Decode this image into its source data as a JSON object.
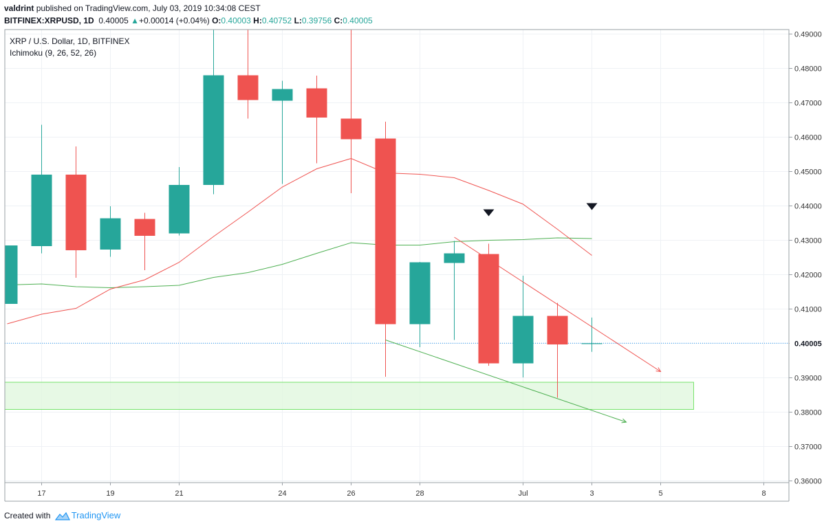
{
  "header": {
    "author": "valdrint",
    "published": "published on TradingView.com, July 03, 2019 10:34:08 CEST",
    "symbol": "BITFINEX:XRPUSD, 1D",
    "last_price": "0.40005",
    "change_arrow": "▲",
    "change": "+0.00014 (+0.04%)",
    "o_label": "O:",
    "o_value": "0.40003",
    "h_label": "H:",
    "h_value": "0.40752",
    "l_label": "L:",
    "l_value": "0.39756",
    "c_label": "C:",
    "c_value": "0.40005"
  },
  "legend": {
    "pair": "XRP / U.S. Dollar, 1D, BITFINEX",
    "indicator": "Ichimoku (9, 26, 52, 26)"
  },
  "footer": {
    "created_with": "Created with",
    "brand": "TradingView"
  },
  "colors": {
    "up": "#26a69a",
    "down": "#ef5350",
    "conversion_line": "#ef5350",
    "base_line": "#4caf50",
    "zone_fill": "#dff7dc",
    "zone_border": "#76e36a",
    "price_line": "#2196f3"
  },
  "chart_data": {
    "type": "candlestick",
    "ylim": [
      0.3595,
      0.4913
    ],
    "xlim": [
      "2019-06-16",
      "2019-07-09"
    ],
    "yticks": [
      "0.36000",
      "0.37000",
      "0.38000",
      "0.39000",
      "0.40000",
      "0.41000",
      "0.42000",
      "0.43000",
      "0.44000",
      "0.45000",
      "0.46000",
      "0.47000",
      "0.48000",
      "0.49000"
    ],
    "xticks": [
      {
        "date": "2019-06-17",
        "label": "17"
      },
      {
        "date": "2019-06-19",
        "label": "19"
      },
      {
        "date": "2019-06-21",
        "label": "21"
      },
      {
        "date": "2019-06-24",
        "label": "24"
      },
      {
        "date": "2019-06-26",
        "label": "26"
      },
      {
        "date": "2019-06-28",
        "label": "28"
      },
      {
        "date": "2019-07-01",
        "label": "Jul"
      },
      {
        "date": "2019-07-03",
        "label": "3"
      },
      {
        "date": "2019-07-05",
        "label": "5"
      },
      {
        "date": "2019-07-08",
        "label": "8"
      }
    ],
    "last_price_label": "0.40005",
    "last_price": 0.40005,
    "candles": [
      {
        "date": "2019-06-16",
        "open": 0.4115,
        "high": 0.4285,
        "low": 0.4115,
        "close": 0.4285
      },
      {
        "date": "2019-06-17",
        "open": 0.4283,
        "high": 0.4636,
        "low": 0.4262,
        "close": 0.4491
      },
      {
        "date": "2019-06-18",
        "open": 0.4491,
        "high": 0.4573,
        "low": 0.4191,
        "close": 0.4271
      },
      {
        "date": "2019-06-19",
        "open": 0.4273,
        "high": 0.4399,
        "low": 0.4252,
        "close": 0.4364
      },
      {
        "date": "2019-06-20",
        "open": 0.4362,
        "high": 0.438,
        "low": 0.4213,
        "close": 0.4313
      },
      {
        "date": "2019-06-21",
        "open": 0.432,
        "high": 0.4513,
        "low": 0.4314,
        "close": 0.4461
      },
      {
        "date": "2019-06-22",
        "open": 0.4461,
        "high": 0.4913,
        "low": 0.4434,
        "close": 0.478
      },
      {
        "date": "2019-06-23",
        "open": 0.478,
        "high": 0.4913,
        "low": 0.4654,
        "close": 0.4708
      },
      {
        "date": "2019-06-24",
        "open": 0.4706,
        "high": 0.4764,
        "low": 0.4464,
        "close": 0.474
      },
      {
        "date": "2019-06-25",
        "open": 0.4742,
        "high": 0.4779,
        "low": 0.4524,
        "close": 0.4657
      },
      {
        "date": "2019-06-26",
        "open": 0.4654,
        "high": 0.4913,
        "low": 0.4437,
        "close": 0.4594
      },
      {
        "date": "2019-06-27",
        "open": 0.4596,
        "high": 0.4645,
        "low": 0.3903,
        "close": 0.4056
      },
      {
        "date": "2019-06-28",
        "open": 0.4056,
        "high": 0.4237,
        "low": 0.3989,
        "close": 0.4236
      },
      {
        "date": "2019-06-29",
        "open": 0.4234,
        "high": 0.4298,
        "low": 0.401,
        "close": 0.4262
      },
      {
        "date": "2019-06-30",
        "open": 0.426,
        "high": 0.429,
        "low": 0.3935,
        "close": 0.3942
      },
      {
        "date": "2019-07-01",
        "open": 0.3942,
        "high": 0.4197,
        "low": 0.3901,
        "close": 0.408
      },
      {
        "date": "2019-07-02",
        "open": 0.408,
        "high": 0.4118,
        "low": 0.3842,
        "close": 0.3997
      },
      {
        "date": "2019-07-03",
        "open": 0.40003,
        "high": 0.40752,
        "low": 0.39756,
        "close": 0.40005
      }
    ],
    "conversion_line": [
      {
        "date": "2019-06-16",
        "value": 0.4057
      },
      {
        "date": "2019-06-17",
        "value": 0.4085
      },
      {
        "date": "2019-06-18",
        "value": 0.4102
      },
      {
        "date": "2019-06-19",
        "value": 0.4158
      },
      {
        "date": "2019-06-20",
        "value": 0.4185
      },
      {
        "date": "2019-06-21",
        "value": 0.4236
      },
      {
        "date": "2019-06-22",
        "value": 0.4311
      },
      {
        "date": "2019-06-23",
        "value": 0.4382
      },
      {
        "date": "2019-06-24",
        "value": 0.4455
      },
      {
        "date": "2019-06-25",
        "value": 0.4508
      },
      {
        "date": "2019-06-26",
        "value": 0.4538
      },
      {
        "date": "2019-06-27",
        "value": 0.4496
      },
      {
        "date": "2019-06-28",
        "value": 0.4492
      },
      {
        "date": "2019-06-29",
        "value": 0.4482
      },
      {
        "date": "2019-06-30",
        "value": 0.4445
      },
      {
        "date": "2019-07-01",
        "value": 0.4405
      },
      {
        "date": "2019-07-02",
        "value": 0.4332
      },
      {
        "date": "2019-07-03",
        "value": 0.4256
      }
    ],
    "base_line": [
      {
        "date": "2019-06-16",
        "value": 0.417
      },
      {
        "date": "2019-06-17",
        "value": 0.4173
      },
      {
        "date": "2019-06-18",
        "value": 0.4165
      },
      {
        "date": "2019-06-19",
        "value": 0.4162
      },
      {
        "date": "2019-06-20",
        "value": 0.4165
      },
      {
        "date": "2019-06-21",
        "value": 0.4169
      },
      {
        "date": "2019-06-22",
        "value": 0.4192
      },
      {
        "date": "2019-06-23",
        "value": 0.4206
      },
      {
        "date": "2019-06-24",
        "value": 0.423
      },
      {
        "date": "2019-06-25",
        "value": 0.4262
      },
      {
        "date": "2019-06-26",
        "value": 0.4293
      },
      {
        "date": "2019-06-27",
        "value": 0.4286
      },
      {
        "date": "2019-06-28",
        "value": 0.4286
      },
      {
        "date": "2019-06-29",
        "value": 0.4296
      },
      {
        "date": "2019-06-30",
        "value": 0.43
      },
      {
        "date": "2019-07-01",
        "value": 0.4302
      },
      {
        "date": "2019-07-02",
        "value": 0.4307
      },
      {
        "date": "2019-07-03",
        "value": 0.4305
      }
    ],
    "support_zone": {
      "from": "2019-06-16",
      "to": "2019-07-06",
      "low": 0.3808,
      "high": 0.3887
    },
    "trend_lines": [
      {
        "name": "resistance",
        "color": "#ef5350",
        "from": {
          "date": "2019-06-29",
          "value": 0.4309
        },
        "to": {
          "date": "2019-07-05",
          "value": 0.3918
        }
      },
      {
        "name": "support",
        "color": "#4caf50",
        "from": {
          "date": "2019-06-27",
          "value": 0.401
        },
        "to": {
          "date": "2019-07-04",
          "value": 0.3771
        }
      }
    ],
    "markers": [
      {
        "date": "2019-06-30",
        "value": 0.438,
        "shape": "triangle-down"
      },
      {
        "date": "2019-07-03",
        "value": 0.4398,
        "shape": "triangle-down"
      }
    ]
  }
}
